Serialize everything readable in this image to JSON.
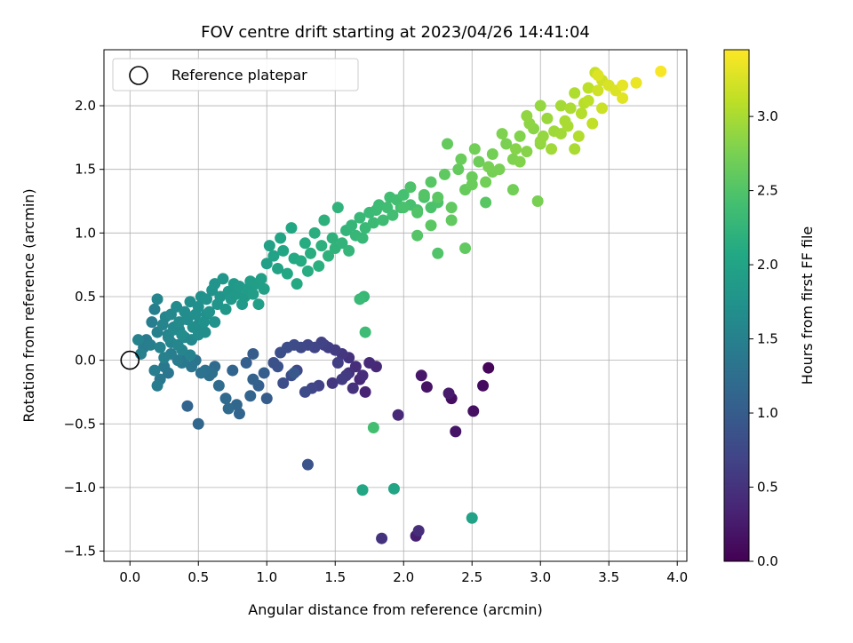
{
  "chart_data": {
    "type": "scatter",
    "title": "FOV centre drift starting at 2023/04/26 14:41:04",
    "xlabel": "Angular distance from reference (arcmin)",
    "ylabel": "Rotation from reference (arcmin)",
    "xlim": [
      -0.19,
      4.07
    ],
    "ylim": [
      -1.58,
      2.44
    ],
    "x_ticks": [
      0.0,
      0.5,
      1.0,
      1.5,
      2.0,
      2.5,
      3.0,
      3.5,
      4.0
    ],
    "x_tick_labels": [
      "0.0",
      "0.5",
      "1.0",
      "1.5",
      "2.0",
      "2.5",
      "3.0",
      "3.5",
      "4.0"
    ],
    "y_ticks": [
      -1.5,
      -1.0,
      -0.5,
      0.0,
      0.5,
      1.0,
      1.5,
      2.0
    ],
    "y_tick_labels": [
      "−1.5",
      "−1.0",
      "−0.5",
      "0.0",
      "0.5",
      "1.0",
      "1.5",
      "2.0"
    ],
    "grid": true,
    "legend": {
      "placement": "top-left",
      "entries": [
        "Reference platepar"
      ]
    },
    "reference_point": {
      "x": 0.0,
      "y": 0.0
    },
    "colorbar": {
      "label": "Hours from first FF file",
      "range": [
        0.0,
        3.45
      ],
      "ticks": [
        0.0,
        0.5,
        1.0,
        1.5,
        2.0,
        2.5,
        3.0
      ],
      "tick_labels": [
        "0.0",
        "0.5",
        "1.0",
        "1.5",
        "2.0",
        "2.5",
        "3.0"
      ],
      "colormap": "viridis"
    },
    "clusters": [
      {
        "x": [
          2.62,
          2.58,
          2.51,
          2.38,
          2.35,
          2.33,
          2.17,
          2.13
        ],
        "y": [
          -0.06,
          -0.2,
          -0.4,
          -0.56,
          -0.3,
          -0.26,
          -0.21,
          -0.12
        ],
        "c": [
          0.05,
          0.1,
          0.15,
          0.2,
          0.12,
          0.25,
          0.18,
          0.22
        ]
      },
      {
        "x": [
          2.09,
          1.96,
          1.84,
          2.11,
          1.72,
          1.68,
          1.65,
          1.6,
          1.55,
          1.5,
          1.45,
          1.42,
          1.4,
          1.35,
          1.3,
          1.25,
          1.2,
          1.15,
          1.1,
          1.05,
          1.6,
          1.7,
          1.75,
          1.8,
          1.55,
          1.48,
          1.38,
          1.33,
          1.28,
          1.22,
          1.18,
          1.12,
          1.08,
          1.63,
          1.58,
          1.52
        ],
        "y": [
          -1.38,
          -0.43,
          -1.4,
          -1.34,
          -0.25,
          -0.15,
          -0.05,
          0.02,
          0.05,
          0.08,
          0.1,
          0.12,
          0.14,
          0.1,
          0.12,
          0.1,
          0.12,
          0.1,
          0.06,
          -0.02,
          -0.1,
          -0.12,
          -0.02,
          -0.05,
          -0.15,
          -0.18,
          -0.2,
          -0.22,
          -0.25,
          -0.08,
          -0.12,
          -0.18,
          -0.05,
          -0.22,
          -0.12,
          -0.02
        ],
        "c": [
          0.3,
          0.4,
          0.5,
          0.45,
          0.35,
          0.4,
          0.45,
          0.5,
          0.55,
          0.6,
          0.62,
          0.65,
          0.68,
          0.7,
          0.72,
          0.75,
          0.78,
          0.8,
          0.82,
          0.85,
          0.5,
          0.45,
          0.42,
          0.4,
          0.6,
          0.55,
          0.68,
          0.72,
          0.78,
          0.74,
          0.8,
          0.82,
          0.86,
          0.48,
          0.58,
          0.62
        ]
      },
      {
        "x": [
          1.3,
          1.2,
          1.0,
          0.98,
          0.94,
          0.9,
          0.88,
          0.8,
          0.78,
          0.72,
          0.7,
          0.65,
          0.6,
          0.5,
          0.42,
          0.9,
          0.85,
          0.75,
          0.62,
          0.58,
          0.55,
          0.52,
          0.48,
          0.45,
          0.4,
          0.38,
          0.35,
          0.3,
          0.28,
          0.25,
          0.22,
          0.2,
          0.18,
          0.15,
          0.08,
          0.06
        ],
        "y": [
          -0.82,
          -0.1,
          -0.3,
          -0.1,
          -0.2,
          -0.15,
          -0.28,
          -0.42,
          -0.35,
          -0.38,
          -0.3,
          -0.2,
          -0.1,
          -0.5,
          -0.36,
          0.05,
          -0.02,
          -0.08,
          -0.05,
          -0.12,
          -0.08,
          -0.1,
          0.0,
          -0.05,
          0.02,
          -0.02,
          0.0,
          0.05,
          -0.1,
          -0.05,
          -0.15,
          -0.2,
          -0.08,
          0.12,
          0.05,
          0.16
        ],
        "c": [
          0.9,
          0.95,
          1.0,
          1.02,
          1.05,
          1.08,
          1.1,
          1.12,
          1.15,
          1.18,
          1.2,
          1.22,
          1.25,
          1.15,
          1.1,
          1.0,
          1.05,
          1.12,
          1.2,
          1.25,
          1.28,
          1.3,
          1.32,
          1.35,
          1.38,
          1.4,
          1.42,
          1.45,
          1.35,
          1.4,
          1.38,
          1.42,
          1.45,
          1.48,
          1.5,
          1.52
        ]
      },
      {
        "x": [
          0.1,
          0.12,
          0.16,
          0.18,
          0.2,
          0.22,
          0.24,
          0.26,
          0.28,
          0.3,
          0.32,
          0.34,
          0.36,
          0.38,
          0.4,
          0.42,
          0.44,
          0.46,
          0.48,
          0.5,
          0.52,
          0.54,
          0.56,
          0.58,
          0.6,
          0.62,
          0.64,
          0.66,
          0.68,
          0.7,
          0.72,
          0.74,
          0.76,
          0.78,
          0.8,
          0.82,
          0.84,
          0.86,
          0.88,
          0.9,
          0.92,
          0.94,
          0.96,
          0.98,
          0.3,
          0.35,
          0.4,
          0.45,
          0.5,
          0.55,
          0.25,
          0.32,
          0.38,
          0.44,
          0.5,
          0.56,
          0.62,
          0.2,
          0.28,
          0.36
        ],
        "y": [
          0.1,
          0.16,
          0.3,
          0.4,
          0.22,
          0.1,
          0.28,
          0.34,
          0.18,
          0.36,
          0.24,
          0.42,
          0.3,
          0.2,
          0.38,
          0.32,
          0.46,
          0.26,
          0.36,
          0.42,
          0.5,
          0.3,
          0.48,
          0.38,
          0.55,
          0.6,
          0.44,
          0.5,
          0.64,
          0.4,
          0.54,
          0.48,
          0.6,
          0.52,
          0.58,
          0.44,
          0.5,
          0.56,
          0.62,
          0.52,
          0.6,
          0.44,
          0.64,
          0.56,
          0.14,
          0.12,
          0.18,
          0.16,
          0.2,
          0.22,
          0.02,
          0.26,
          0.08,
          0.04,
          0.28,
          0.36,
          0.3,
          0.48,
          0.2,
          0.24
        ],
        "c": [
          1.42,
          1.44,
          1.46,
          1.48,
          1.5,
          1.52,
          1.54,
          1.56,
          1.58,
          1.6,
          1.62,
          1.63,
          1.64,
          1.65,
          1.66,
          1.67,
          1.68,
          1.69,
          1.7,
          1.71,
          1.72,
          1.73,
          1.74,
          1.75,
          1.76,
          1.77,
          1.78,
          1.79,
          1.8,
          1.81,
          1.82,
          1.83,
          1.84,
          1.85,
          1.86,
          1.87,
          1.88,
          1.89,
          1.9,
          1.91,
          1.92,
          1.93,
          1.94,
          1.95,
          1.55,
          1.57,
          1.6,
          1.62,
          1.65,
          1.68,
          1.5,
          1.58,
          1.54,
          1.52,
          1.66,
          1.7,
          1.74,
          1.56,
          1.5,
          1.6
        ]
      },
      {
        "x": [
          1.0,
          1.02,
          1.05,
          1.08,
          1.1,
          1.12,
          1.15,
          1.18,
          1.2,
          1.22,
          1.25,
          1.28,
          1.3,
          1.32,
          1.35,
          1.38,
          1.4,
          1.42,
          1.45,
          1.48,
          1.5,
          1.52,
          1.55,
          1.58,
          1.6,
          1.62,
          1.65,
          1.68,
          1.7,
          1.72,
          1.75,
          1.78,
          1.8,
          1.82,
          1.85,
          1.88,
          1.9,
          1.92,
          1.95,
          1.98,
          2.0,
          2.05,
          2.1,
          2.15,
          2.2,
          2.25,
          1.72,
          1.78,
          1.7,
          1.71,
          1.93,
          2.5,
          1.68
        ],
        "y": [
          0.76,
          0.9,
          0.82,
          0.72,
          0.96,
          0.86,
          0.68,
          1.04,
          0.8,
          0.6,
          0.78,
          0.92,
          0.7,
          0.84,
          1.0,
          0.74,
          0.9,
          1.1,
          0.82,
          0.96,
          0.88,
          1.2,
          0.92,
          1.02,
          0.86,
          1.06,
          0.98,
          1.12,
          0.96,
          1.04,
          1.16,
          1.08,
          1.18,
          1.22,
          1.1,
          1.2,
          1.28,
          1.14,
          1.26,
          1.2,
          1.3,
          1.22,
          1.18,
          1.28,
          1.2,
          1.24,
          0.22,
          -0.53,
          -1.02,
          0.5,
          -1.01,
          -1.24,
          0.48
        ],
        "c": [
          1.95,
          1.97,
          1.98,
          2.0,
          2.02,
          2.03,
          2.05,
          2.06,
          2.08,
          2.09,
          2.1,
          2.12,
          2.13,
          2.14,
          2.15,
          2.17,
          2.18,
          2.19,
          2.2,
          2.21,
          2.22,
          2.23,
          2.24,
          2.25,
          2.26,
          2.27,
          2.28,
          2.29,
          2.3,
          2.31,
          2.32,
          2.33,
          2.34,
          2.35,
          2.36,
          2.37,
          2.38,
          2.39,
          2.4,
          2.41,
          2.42,
          2.43,
          2.44,
          2.45,
          2.46,
          2.47,
          2.35,
          2.4,
          2.05,
          2.3,
          2.02,
          1.98,
          2.32
        ]
      },
      {
        "x": [
          2.0,
          2.05,
          2.1,
          2.15,
          2.2,
          2.25,
          2.3,
          2.35,
          2.4,
          2.45,
          2.5,
          2.55,
          2.6,
          2.65,
          2.7,
          2.75,
          2.8,
          2.85,
          2.9,
          2.95,
          3.0,
          2.32,
          2.42,
          2.52,
          2.62,
          2.72,
          2.82,
          2.92,
          3.02,
          2.6,
          2.45,
          2.25,
          2.8,
          2.98,
          2.1,
          2.2,
          2.35,
          2.5,
          2.65,
          2.85
        ],
        "y": [
          1.2,
          1.36,
          1.16,
          1.3,
          1.4,
          1.28,
          1.46,
          1.2,
          1.5,
          1.34,
          1.44,
          1.56,
          1.4,
          1.62,
          1.5,
          1.7,
          1.58,
          1.76,
          1.64,
          1.82,
          1.7,
          1.7,
          1.58,
          1.66,
          1.52,
          1.78,
          1.66,
          1.86,
          1.76,
          1.24,
          0.88,
          0.84,
          1.34,
          1.25,
          0.98,
          1.06,
          1.1,
          1.38,
          1.48,
          1.56
        ],
        "c": [
          2.45,
          2.48,
          2.5,
          2.52,
          2.54,
          2.56,
          2.58,
          2.6,
          2.62,
          2.64,
          2.66,
          2.68,
          2.7,
          2.72,
          2.74,
          2.76,
          2.78,
          2.8,
          2.82,
          2.84,
          2.86,
          2.62,
          2.66,
          2.7,
          2.74,
          2.78,
          2.82,
          2.86,
          2.9,
          2.55,
          2.6,
          2.5,
          2.7,
          2.75,
          2.52,
          2.56,
          2.6,
          2.66,
          2.72,
          2.8
        ]
      },
      {
        "x": [
          3.0,
          3.05,
          3.1,
          3.15,
          3.2,
          3.25,
          3.3,
          3.35,
          3.4,
          3.45,
          3.5,
          3.6,
          3.7,
          3.88,
          3.42,
          3.45,
          3.6,
          3.38,
          3.28,
          3.18,
          3.08,
          3.22,
          3.32,
          2.9,
          3.0,
          3.15,
          3.25,
          3.35,
          3.42,
          3.55
        ],
        "y": [
          1.72,
          1.9,
          1.8,
          2.0,
          1.84,
          2.1,
          1.94,
          2.14,
          2.26,
          2.2,
          2.16,
          2.06,
          2.18,
          2.27,
          2.24,
          1.98,
          2.16,
          1.86,
          1.76,
          1.88,
          1.66,
          1.98,
          2.02,
          1.92,
          2.0,
          1.78,
          1.66,
          2.04,
          2.12,
          2.12
        ],
        "c": [
          2.9,
          2.92,
          2.95,
          2.98,
          3.0,
          3.03,
          3.06,
          3.1,
          3.15,
          3.2,
          3.25,
          3.3,
          3.35,
          3.42,
          3.28,
          3.18,
          3.32,
          3.12,
          3.05,
          3.0,
          2.96,
          3.02,
          3.08,
          2.88,
          2.9,
          2.96,
          3.0,
          3.1,
          3.2,
          3.26
        ]
      }
    ]
  }
}
